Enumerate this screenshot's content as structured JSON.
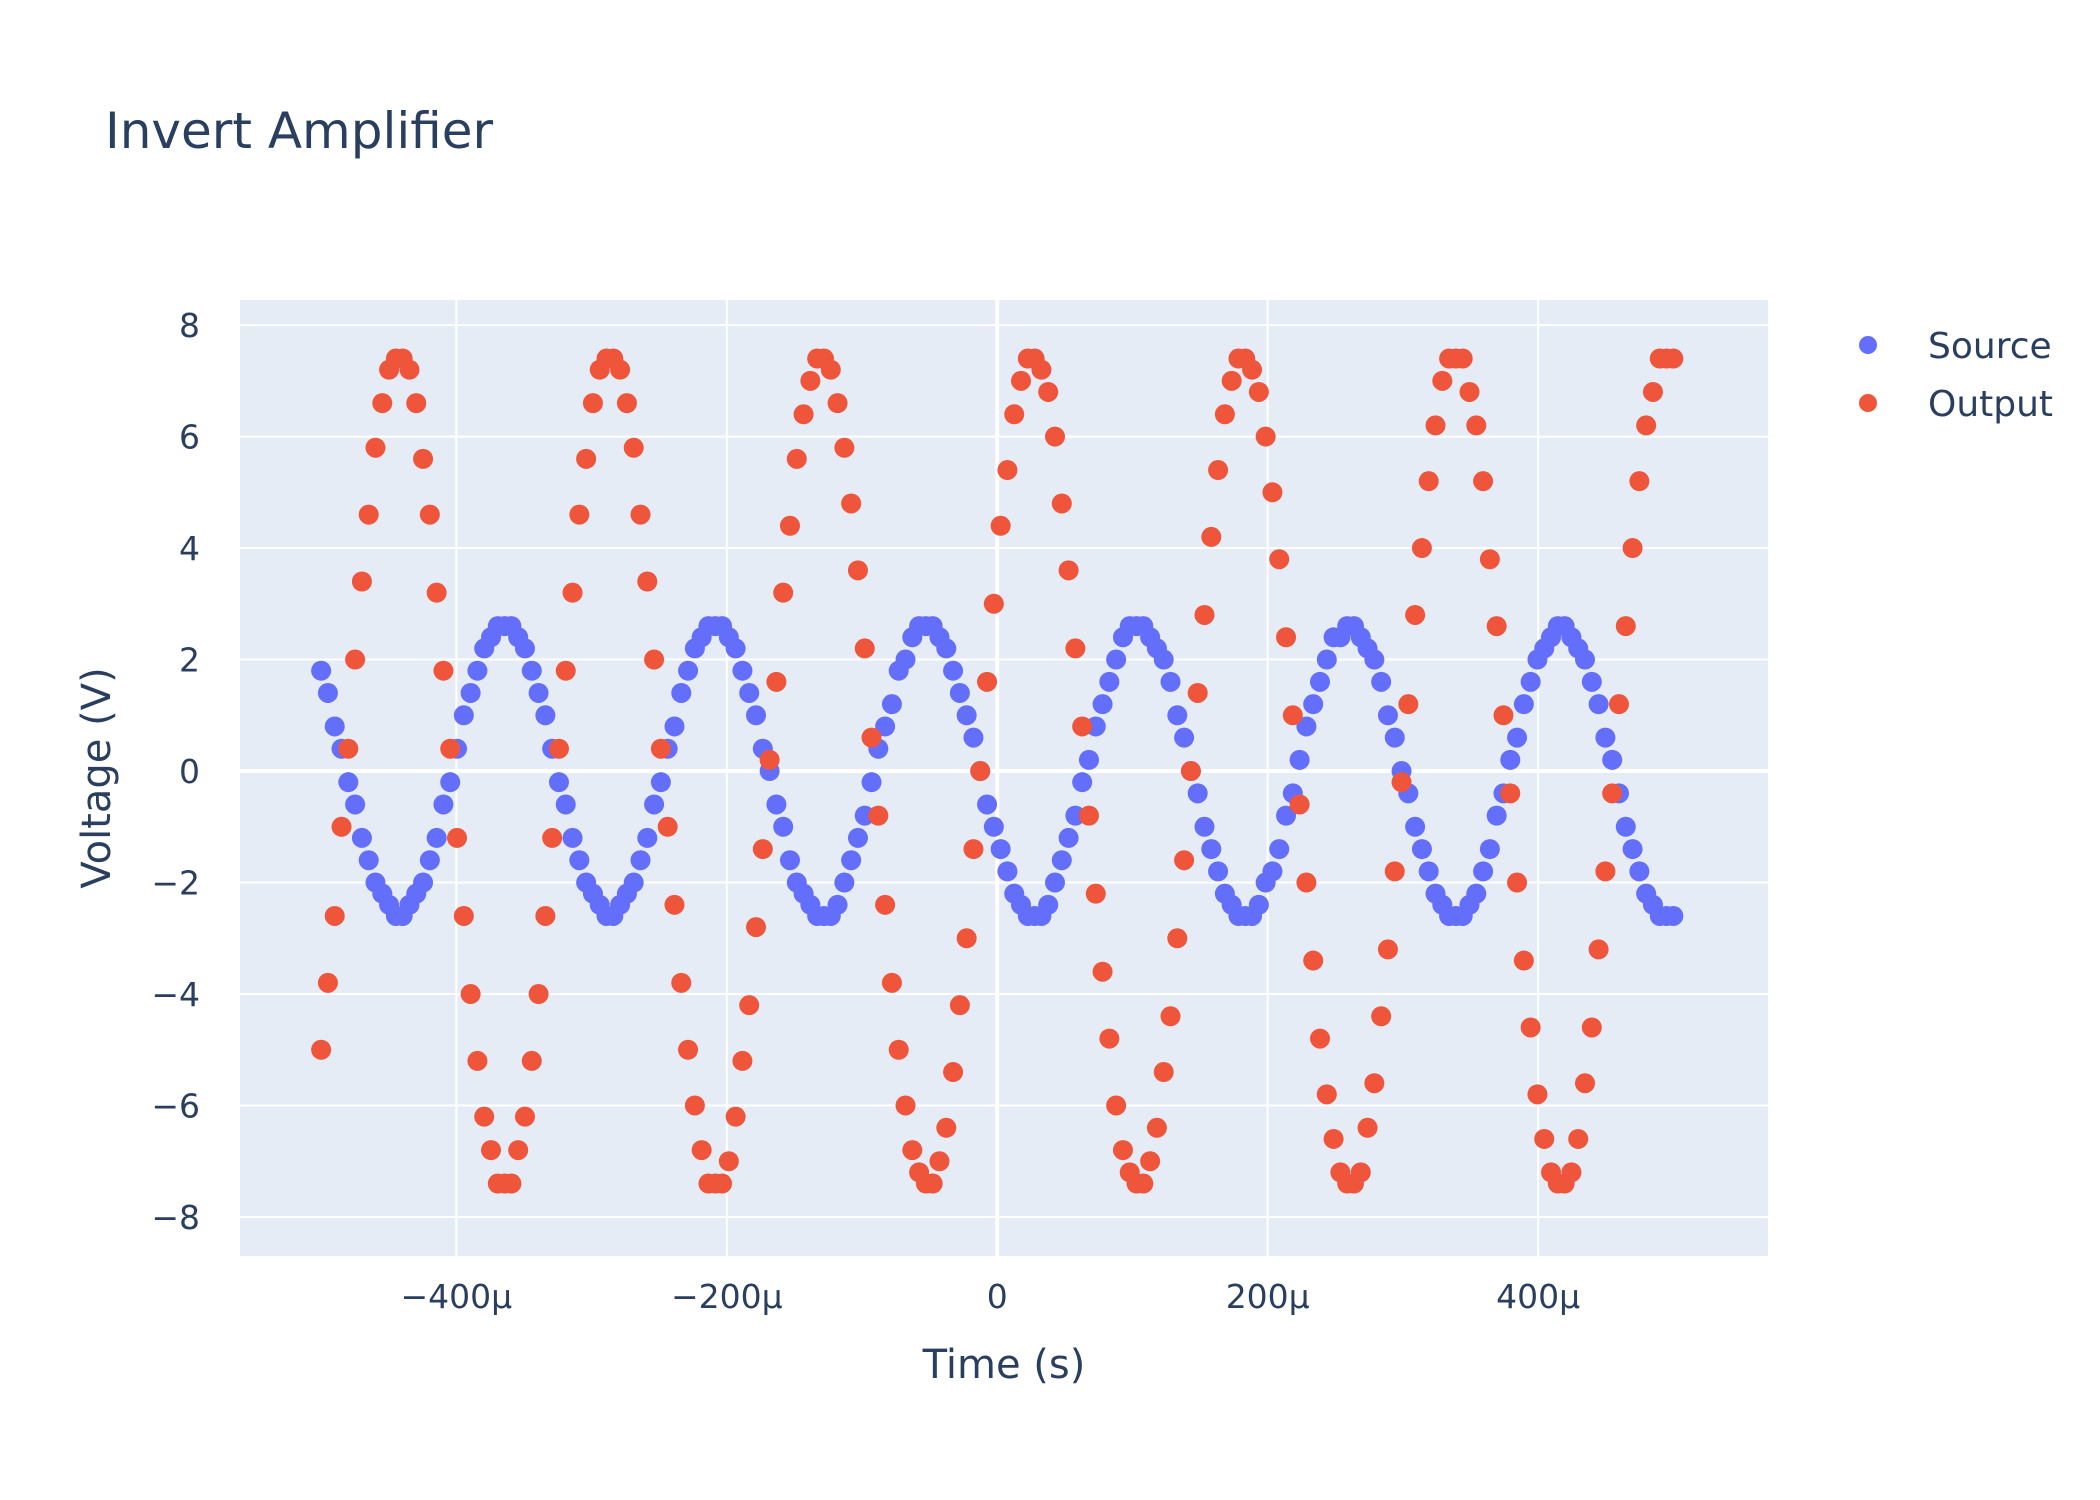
{
  "chart_data": {
    "type": "scatter",
    "title": "Invert Amplifier",
    "xlabel": "Time (s)",
    "ylabel": "Voltage (V)",
    "xlim": [
      -0.00056,
      0.00057
    ],
    "ylim": [
      -8.7,
      8.45
    ],
    "x_ticks": [
      -0.0004,
      -0.0002,
      0,
      0.0002,
      0.0004
    ],
    "x_tick_labels": [
      "−400μ",
      "−200μ",
      "0",
      "200μ",
      "400μ"
    ],
    "y_ticks": [
      -8,
      -6,
      -4,
      -2,
      0,
      2,
      4,
      6,
      8
    ],
    "y_tick_labels": [
      "−8",
      "−6",
      "−4",
      "−2",
      "0",
      "2",
      "4",
      "6",
      "8"
    ],
    "grid": true,
    "legend_position": "top-right",
    "x_range": [
      -0.0005,
      0.0005
    ],
    "n_points": 200,
    "quantization_step_V": 0.2,
    "series": [
      {
        "name": "Source",
        "color": "#636efa",
        "amplitude": 2.6,
        "frequency_hz": 6400,
        "phase_rad": -2.63
      },
      {
        "name": "Output",
        "color": "#ef553b",
        "amplitude": 7.5,
        "frequency_hz": 6400,
        "phase_rad": 0.512
      }
    ]
  }
}
